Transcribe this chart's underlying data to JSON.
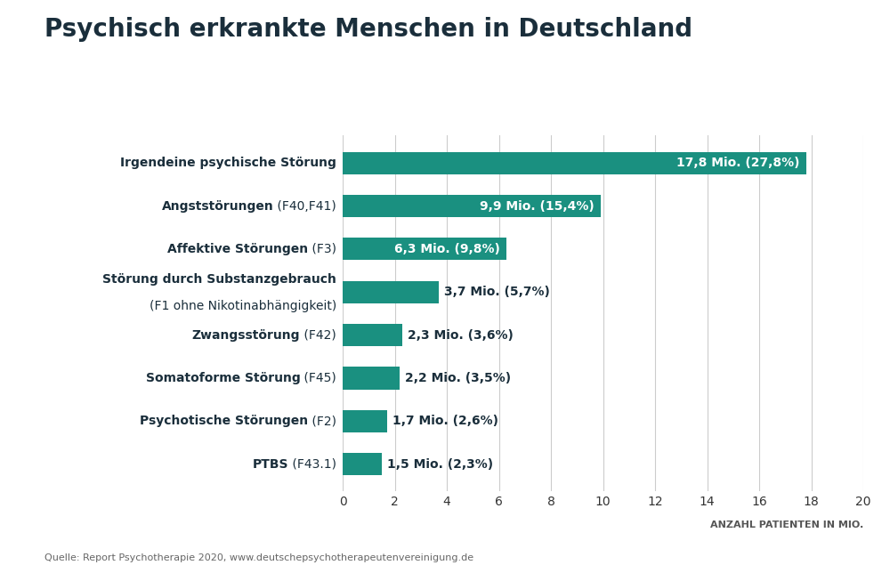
{
  "title": "Psychisch erkrankte Menschen in Deutschland",
  "category_labels_bold": [
    "PTBS",
    "Psychotische Störungen",
    "Somatoforme Störung",
    "Zwangsstörung",
    "Störung durch Substanzgebrauch",
    "Affektive Störungen",
    "Angststörungen",
    "Irgendeine psychische Störung"
  ],
  "category_labels_normal": [
    " (F43.1)",
    " (F2)",
    " (F45)",
    " (F42)",
    "",
    " (F3)",
    " (F40,F41)",
    ""
  ],
  "category_labels_line2": [
    "",
    "",
    "",
    "",
    "(F1 ohne Nikotinabhängigkeit)",
    "",
    "",
    ""
  ],
  "values": [
    1.5,
    1.7,
    2.2,
    2.3,
    3.7,
    6.3,
    9.9,
    17.8
  ],
  "bar_labels": [
    "1,5 Mio. (2,3%)",
    "1,7 Mio. (2,6%)",
    "2,2 Mio. (3,5%)",
    "2,3 Mio. (3,6%)",
    "3,7 Mio. (5,7%)",
    "6,3 Mio. (9,8%)",
    "9,9 Mio. (15,4%)",
    "17,8 Mio. (27,8%)"
  ],
  "bar_color": "#1a9080",
  "text_color_inside": "#ffffff",
  "text_color_outside": "#1a2e3b",
  "xlabel": "ANZAHL PATIENTEN IN MIO.",
  "xlim": [
    0,
    20
  ],
  "xticks": [
    0,
    2,
    4,
    6,
    8,
    10,
    12,
    14,
    16,
    18,
    20
  ],
  "source_text": "Quelle: Report Psychotherapie 2020, www.deutschepsychotherapeutenvereinigung.de",
  "background_color": "#ffffff",
  "title_color": "#1a2e3b",
  "label_color": "#1a2e3b",
  "grid_color": "#cccccc"
}
